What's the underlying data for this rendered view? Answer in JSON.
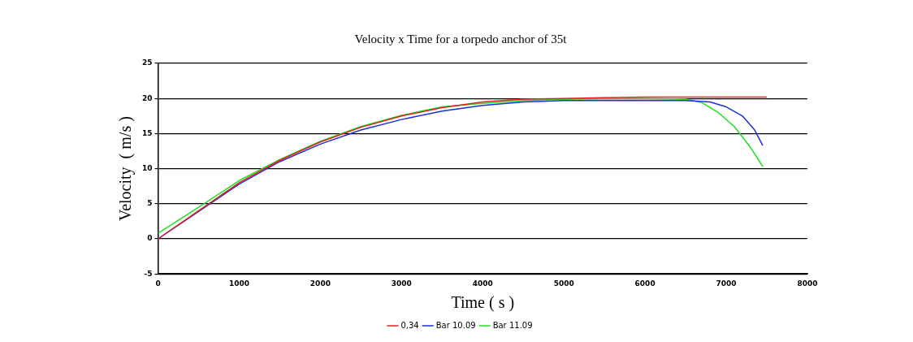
{
  "chart_data": {
    "type": "line",
    "title": "Velocity x Time for a torpedo anchor of 35t",
    "xlabel": "Time ( s )",
    "ylabel": "Velocity  ( m/s )",
    "xlim": [
      0,
      8000
    ],
    "xticks": [
      0,
      1000,
      2000,
      3000,
      4000,
      5000,
      6000,
      7000,
      8000
    ],
    "ylim": [
      -5,
      25
    ],
    "yticks": [
      -5,
      0,
      5,
      10,
      15,
      20,
      25
    ],
    "grid": "y",
    "legend": "bottom",
    "marker": "none",
    "line_style": "solid",
    "series": [
      {
        "name": "0,34",
        "color": "#e02020",
        "x": [
          0,
          500,
          1000,
          1500,
          2000,
          2500,
          3000,
          3500,
          4000,
          4500,
          5000,
          5500,
          6000,
          6500,
          7000,
          7500
        ],
        "values": [
          0,
          4,
          8,
          11.2,
          13.8,
          15.9,
          17.5,
          18.7,
          19.5,
          19.9,
          20,
          20.1,
          20.2,
          20.2,
          20.2,
          20.2
        ]
      },
      {
        "name": "Bar 10.09",
        "color": "#1c2fd0",
        "x": [
          0,
          500,
          1000,
          1500,
          2000,
          2500,
          3000,
          3500,
          4000,
          4500,
          5000,
          5500,
          6000,
          6500,
          6800,
          7000,
          7200,
          7350,
          7450
        ],
        "values": [
          0,
          3.9,
          7.8,
          11,
          13.5,
          15.5,
          17,
          18.2,
          19,
          19.5,
          19.7,
          19.7,
          19.7,
          19.7,
          19.5,
          18.8,
          17.5,
          15.5,
          13.3
        ]
      },
      {
        "name": "Bar 11.09",
        "color": "#22dd22",
        "x": [
          0,
          500,
          1000,
          1500,
          2000,
          2500,
          3000,
          3500,
          4000,
          4500,
          5000,
          5500,
          6000,
          6500,
          6700,
          6900,
          7100,
          7300,
          7450
        ],
        "values": [
          0.8,
          4.5,
          8.3,
          11.3,
          13.9,
          16,
          17.6,
          18.8,
          19.3,
          19.7,
          19.9,
          20,
          20,
          19.9,
          19.4,
          18,
          16,
          13,
          10.3
        ]
      }
    ]
  }
}
